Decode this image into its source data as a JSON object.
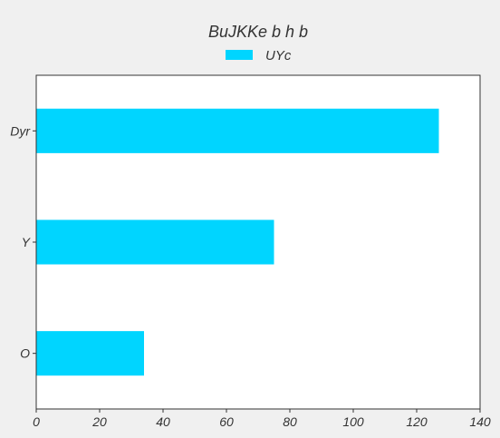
{
  "chart_data": {
    "type": "bar",
    "orientation": "horizontal",
    "title": "BuJKKe b h b",
    "categories": [
      "Dyr",
      "Y",
      "O"
    ],
    "series": [
      {
        "name": "UYc",
        "values": [
          127,
          75,
          34
        ]
      }
    ],
    "xlim": [
      0,
      140
    ],
    "xticks": [
      "0",
      "20",
      "40",
      "60",
      "80",
      "100",
      "120",
      "140"
    ],
    "xlabel": "",
    "ylabel": "",
    "grid": false,
    "legend_position": "top-center",
    "colors": {
      "bar": "#00d5ff",
      "background": "#f0f0f0",
      "plot_background": "#ffffff",
      "axis": "#333333"
    }
  }
}
